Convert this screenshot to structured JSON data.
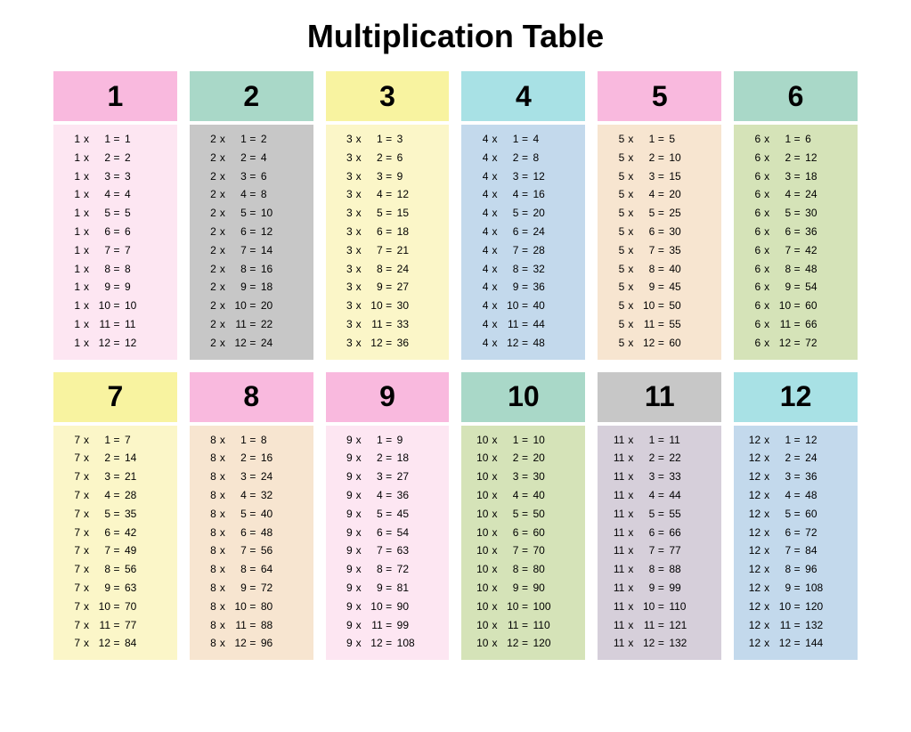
{
  "title": "Multiplication Table",
  "background": "#ffffff",
  "title_color": "#000000",
  "title_fontsize": 36,
  "number_fontsize": 32,
  "row_fontsize": 12,
  "text_color": "#000000",
  "multipliers": [
    1,
    2,
    3,
    4,
    5,
    6,
    7,
    8,
    9,
    10,
    11,
    12
  ],
  "tables": [
    {
      "n": 1,
      "header_color": "#f9b9de",
      "body_color": "#fde6f2",
      "rows": [
        {
          "a": 1,
          "b": 1,
          "r": 1
        },
        {
          "a": 1,
          "b": 2,
          "r": 2
        },
        {
          "a": 1,
          "b": 3,
          "r": 3
        },
        {
          "a": 1,
          "b": 4,
          "r": 4
        },
        {
          "a": 1,
          "b": 5,
          "r": 5
        },
        {
          "a": 1,
          "b": 6,
          "r": 6
        },
        {
          "a": 1,
          "b": 7,
          "r": 7
        },
        {
          "a": 1,
          "b": 8,
          "r": 8
        },
        {
          "a": 1,
          "b": 9,
          "r": 9
        },
        {
          "a": 1,
          "b": 10,
          "r": 10
        },
        {
          "a": 1,
          "b": 11,
          "r": 11
        },
        {
          "a": 1,
          "b": 12,
          "r": 12
        }
      ]
    },
    {
      "n": 2,
      "header_color": "#a9d8c8",
      "body_color": "#c7c7c7",
      "rows": [
        {
          "a": 2,
          "b": 1,
          "r": 2
        },
        {
          "a": 2,
          "b": 2,
          "r": 4
        },
        {
          "a": 2,
          "b": 3,
          "r": 6
        },
        {
          "a": 2,
          "b": 4,
          "r": 8
        },
        {
          "a": 2,
          "b": 5,
          "r": 10
        },
        {
          "a": 2,
          "b": 6,
          "r": 12
        },
        {
          "a": 2,
          "b": 7,
          "r": 14
        },
        {
          "a": 2,
          "b": 8,
          "r": 16
        },
        {
          "a": 2,
          "b": 9,
          "r": 18
        },
        {
          "a": 2,
          "b": 10,
          "r": 20
        },
        {
          "a": 2,
          "b": 11,
          "r": 22
        },
        {
          "a": 2,
          "b": 12,
          "r": 24
        }
      ]
    },
    {
      "n": 3,
      "header_color": "#f8f3a0",
      "body_color": "#fbf6c8",
      "rows": [
        {
          "a": 3,
          "b": 1,
          "r": 3
        },
        {
          "a": 3,
          "b": 2,
          "r": 6
        },
        {
          "a": 3,
          "b": 3,
          "r": 9
        },
        {
          "a": 3,
          "b": 4,
          "r": 12
        },
        {
          "a": 3,
          "b": 5,
          "r": 15
        },
        {
          "a": 3,
          "b": 6,
          "r": 18
        },
        {
          "a": 3,
          "b": 7,
          "r": 21
        },
        {
          "a": 3,
          "b": 8,
          "r": 24
        },
        {
          "a": 3,
          "b": 9,
          "r": 27
        },
        {
          "a": 3,
          "b": 10,
          "r": 30
        },
        {
          "a": 3,
          "b": 11,
          "r": 33
        },
        {
          "a": 3,
          "b": 12,
          "r": 36
        }
      ]
    },
    {
      "n": 4,
      "header_color": "#a8e1e5",
      "body_color": "#c3d9ec",
      "rows": [
        {
          "a": 4,
          "b": 1,
          "r": 4
        },
        {
          "a": 4,
          "b": 2,
          "r": 8
        },
        {
          "a": 4,
          "b": 3,
          "r": 12
        },
        {
          "a": 4,
          "b": 4,
          "r": 16
        },
        {
          "a": 4,
          "b": 5,
          "r": 20
        },
        {
          "a": 4,
          "b": 6,
          "r": 24
        },
        {
          "a": 4,
          "b": 7,
          "r": 28
        },
        {
          "a": 4,
          "b": 8,
          "r": 32
        },
        {
          "a": 4,
          "b": 9,
          "r": 36
        },
        {
          "a": 4,
          "b": 10,
          "r": 40
        },
        {
          "a": 4,
          "b": 11,
          "r": 44
        },
        {
          "a": 4,
          "b": 12,
          "r": 48
        }
      ]
    },
    {
      "n": 5,
      "header_color": "#f9b9de",
      "body_color": "#f7e5d0",
      "rows": [
        {
          "a": 5,
          "b": 1,
          "r": 5
        },
        {
          "a": 5,
          "b": 2,
          "r": 10
        },
        {
          "a": 5,
          "b": 3,
          "r": 15
        },
        {
          "a": 5,
          "b": 4,
          "r": 20
        },
        {
          "a": 5,
          "b": 5,
          "r": 25
        },
        {
          "a": 5,
          "b": 6,
          "r": 30
        },
        {
          "a": 5,
          "b": 7,
          "r": 35
        },
        {
          "a": 5,
          "b": 8,
          "r": 40
        },
        {
          "a": 5,
          "b": 9,
          "r": 45
        },
        {
          "a": 5,
          "b": 10,
          "r": 50
        },
        {
          "a": 5,
          "b": 11,
          "r": 55
        },
        {
          "a": 5,
          "b": 12,
          "r": 60
        }
      ]
    },
    {
      "n": 6,
      "header_color": "#a9d8c8",
      "body_color": "#d5e3b8",
      "rows": [
        {
          "a": 6,
          "b": 1,
          "r": 6
        },
        {
          "a": 6,
          "b": 2,
          "r": 12
        },
        {
          "a": 6,
          "b": 3,
          "r": 18
        },
        {
          "a": 6,
          "b": 4,
          "r": 24
        },
        {
          "a": 6,
          "b": 5,
          "r": 30
        },
        {
          "a": 6,
          "b": 6,
          "r": 36
        },
        {
          "a": 6,
          "b": 7,
          "r": 42
        },
        {
          "a": 6,
          "b": 8,
          "r": 48
        },
        {
          "a": 6,
          "b": 9,
          "r": 54
        },
        {
          "a": 6,
          "b": 10,
          "r": 60
        },
        {
          "a": 6,
          "b": 11,
          "r": 66
        },
        {
          "a": 6,
          "b": 12,
          "r": 72
        }
      ]
    },
    {
      "n": 7,
      "header_color": "#f8f3a0",
      "body_color": "#fbf6c8",
      "rows": [
        {
          "a": 7,
          "b": 1,
          "r": 7
        },
        {
          "a": 7,
          "b": 2,
          "r": 14
        },
        {
          "a": 7,
          "b": 3,
          "r": 21
        },
        {
          "a": 7,
          "b": 4,
          "r": 28
        },
        {
          "a": 7,
          "b": 5,
          "r": 35
        },
        {
          "a": 7,
          "b": 6,
          "r": 42
        },
        {
          "a": 7,
          "b": 7,
          "r": 49
        },
        {
          "a": 7,
          "b": 8,
          "r": 56
        },
        {
          "a": 7,
          "b": 9,
          "r": 63
        },
        {
          "a": 7,
          "b": 10,
          "r": 70
        },
        {
          "a": 7,
          "b": 11,
          "r": 77
        },
        {
          "a": 7,
          "b": 12,
          "r": 84
        }
      ]
    },
    {
      "n": 8,
      "header_color": "#f9b9de",
      "body_color": "#f7e5d0",
      "rows": [
        {
          "a": 8,
          "b": 1,
          "r": 8
        },
        {
          "a": 8,
          "b": 2,
          "r": 16
        },
        {
          "a": 8,
          "b": 3,
          "r": 24
        },
        {
          "a": 8,
          "b": 4,
          "r": 32
        },
        {
          "a": 8,
          "b": 5,
          "r": 40
        },
        {
          "a": 8,
          "b": 6,
          "r": 48
        },
        {
          "a": 8,
          "b": 7,
          "r": 56
        },
        {
          "a": 8,
          "b": 8,
          "r": 64
        },
        {
          "a": 8,
          "b": 9,
          "r": 72
        },
        {
          "a": 8,
          "b": 10,
          "r": 80
        },
        {
          "a": 8,
          "b": 11,
          "r": 88
        },
        {
          "a": 8,
          "b": 12,
          "r": 96
        }
      ]
    },
    {
      "n": 9,
      "header_color": "#f9b9de",
      "body_color": "#fde6f2",
      "rows": [
        {
          "a": 9,
          "b": 1,
          "r": 9
        },
        {
          "a": 9,
          "b": 2,
          "r": 18
        },
        {
          "a": 9,
          "b": 3,
          "r": 27
        },
        {
          "a": 9,
          "b": 4,
          "r": 36
        },
        {
          "a": 9,
          "b": 5,
          "r": 45
        },
        {
          "a": 9,
          "b": 6,
          "r": 54
        },
        {
          "a": 9,
          "b": 7,
          "r": 63
        },
        {
          "a": 9,
          "b": 8,
          "r": 72
        },
        {
          "a": 9,
          "b": 9,
          "r": 81
        },
        {
          "a": 9,
          "b": 10,
          "r": 90
        },
        {
          "a": 9,
          "b": 11,
          "r": 99
        },
        {
          "a": 9,
          "b": 12,
          "r": 108
        }
      ]
    },
    {
      "n": 10,
      "header_color": "#a9d8c8",
      "body_color": "#d5e3b8",
      "rows": [
        {
          "a": 10,
          "b": 1,
          "r": 10
        },
        {
          "a": 10,
          "b": 2,
          "r": 20
        },
        {
          "a": 10,
          "b": 3,
          "r": 30
        },
        {
          "a": 10,
          "b": 4,
          "r": 40
        },
        {
          "a": 10,
          "b": 5,
          "r": 50
        },
        {
          "a": 10,
          "b": 6,
          "r": 60
        },
        {
          "a": 10,
          "b": 7,
          "r": 70
        },
        {
          "a": 10,
          "b": 8,
          "r": 80
        },
        {
          "a": 10,
          "b": 9,
          "r": 90
        },
        {
          "a": 10,
          "b": 10,
          "r": 100
        },
        {
          "a": 10,
          "b": 11,
          "r": 110
        },
        {
          "a": 10,
          "b": 12,
          "r": 120
        }
      ]
    },
    {
      "n": 11,
      "header_color": "#c7c7c7",
      "body_color": "#d6cfda",
      "rows": [
        {
          "a": 11,
          "b": 1,
          "r": 11
        },
        {
          "a": 11,
          "b": 2,
          "r": 22
        },
        {
          "a": 11,
          "b": 3,
          "r": 33
        },
        {
          "a": 11,
          "b": 4,
          "r": 44
        },
        {
          "a": 11,
          "b": 5,
          "r": 55
        },
        {
          "a": 11,
          "b": 6,
          "r": 66
        },
        {
          "a": 11,
          "b": 7,
          "r": 77
        },
        {
          "a": 11,
          "b": 8,
          "r": 88
        },
        {
          "a": 11,
          "b": 9,
          "r": 99
        },
        {
          "a": 11,
          "b": 10,
          "r": 110
        },
        {
          "a": 11,
          "b": 11,
          "r": 121
        },
        {
          "a": 11,
          "b": 12,
          "r": 132
        }
      ]
    },
    {
      "n": 12,
      "header_color": "#a8e1e5",
      "body_color": "#c3d9ec",
      "rows": [
        {
          "a": 12,
          "b": 1,
          "r": 12
        },
        {
          "a": 12,
          "b": 2,
          "r": 24
        },
        {
          "a": 12,
          "b": 3,
          "r": 36
        },
        {
          "a": 12,
          "b": 4,
          "r": 48
        },
        {
          "a": 12,
          "b": 5,
          "r": 60
        },
        {
          "a": 12,
          "b": 6,
          "r": 72
        },
        {
          "a": 12,
          "b": 7,
          "r": 84
        },
        {
          "a": 12,
          "b": 8,
          "r": 96
        },
        {
          "a": 12,
          "b": 9,
          "r": 108
        },
        {
          "a": 12,
          "b": 10,
          "r": 120
        },
        {
          "a": 12,
          "b": 11,
          "r": 132
        },
        {
          "a": 12,
          "b": 12,
          "r": 144
        }
      ]
    }
  ]
}
